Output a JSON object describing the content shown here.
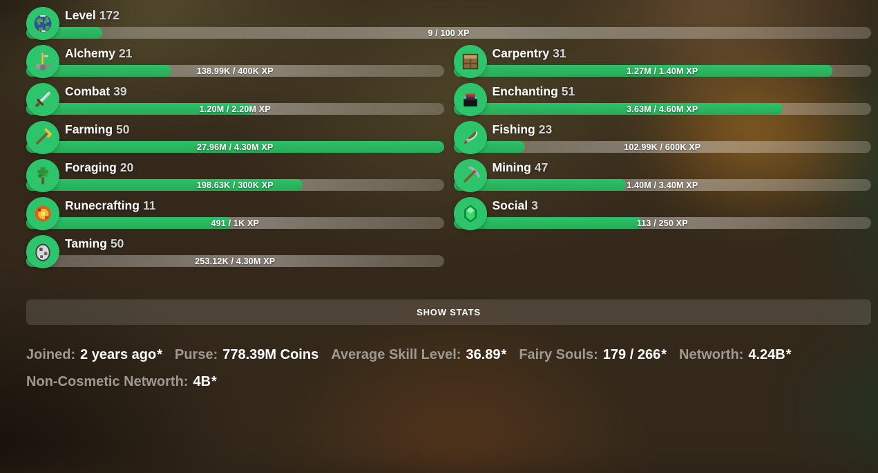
{
  "theme": {
    "accent_green": "#29b862",
    "icon_circle_green": "#2dc46c",
    "bar_track": "rgba(255,255,255,0.35)",
    "button_background": "rgba(255,255,255,0.13)",
    "label_gray": "#9e9a93",
    "text_white": "#ffffff"
  },
  "level": {
    "label": "Level",
    "value": "172",
    "icon": "globe-icon",
    "xp_text": "9 / 100 XP",
    "percent": 9
  },
  "skills": [
    {
      "name": "Alchemy",
      "level": "21",
      "icon": "brewing-stand-icon",
      "xp_text": "138.99K / 400K XP",
      "percent": 34.7
    },
    {
      "name": "Carpentry",
      "level": "31",
      "icon": "crafting-table-icon",
      "xp_text": "1.27M / 1.40M XP",
      "percent": 90.7
    },
    {
      "name": "Combat",
      "level": "39",
      "icon": "sword-icon",
      "xp_text": "1.20M / 2.20M XP",
      "percent": 54.5
    },
    {
      "name": "Enchanting",
      "level": "51",
      "icon": "enchanting-table-icon",
      "xp_text": "3.63M / 4.60M XP",
      "percent": 78.9
    },
    {
      "name": "Farming",
      "level": "50",
      "icon": "golden-hoe-icon",
      "xp_text": "27.96M / 4.30M XP",
      "percent": 100
    },
    {
      "name": "Fishing",
      "level": "23",
      "icon": "fishing-rod-icon",
      "xp_text": "102.99K / 600K XP",
      "percent": 17.2
    },
    {
      "name": "Foraging",
      "level": "20",
      "icon": "sapling-icon",
      "xp_text": "198.63K / 300K XP",
      "percent": 66.2
    },
    {
      "name": "Mining",
      "level": "47",
      "icon": "pickaxe-icon",
      "xp_text": "1.40M / 3.40M XP",
      "percent": 41.2
    },
    {
      "name": "Runecrafting",
      "level": "11",
      "icon": "magma-orb-icon",
      "xp_text": "491 / 1K XP",
      "percent": 49.1
    },
    {
      "name": "Social",
      "level": "3",
      "icon": "emerald-icon",
      "xp_text": "113 / 250 XP",
      "percent": 45.2
    },
    {
      "name": "Taming",
      "level": "50",
      "icon": "spawn-egg-icon",
      "xp_text": "253.12K / 4.30M XP",
      "percent": 5.9
    }
  ],
  "show_stats": {
    "label": "SHOW STATS"
  },
  "stats": [
    {
      "line": 1,
      "label": "Joined:",
      "value": "2 years ago",
      "asterisk": true
    },
    {
      "line": 1,
      "label": "Purse:",
      "value": "778.39M Coins",
      "asterisk": false
    },
    {
      "line": 1,
      "label": "Average Skill Level:",
      "value": "36.89",
      "asterisk": true
    },
    {
      "line": 1,
      "label": "Fairy Souls:",
      "value": "179 / 266",
      "asterisk": true
    },
    {
      "line": 1,
      "label": "Networth:",
      "value": "4.24B",
      "asterisk": true
    },
    {
      "line": 2,
      "label": "Non-Cosmetic Networth:",
      "value": "4B",
      "asterisk": true
    }
  ]
}
